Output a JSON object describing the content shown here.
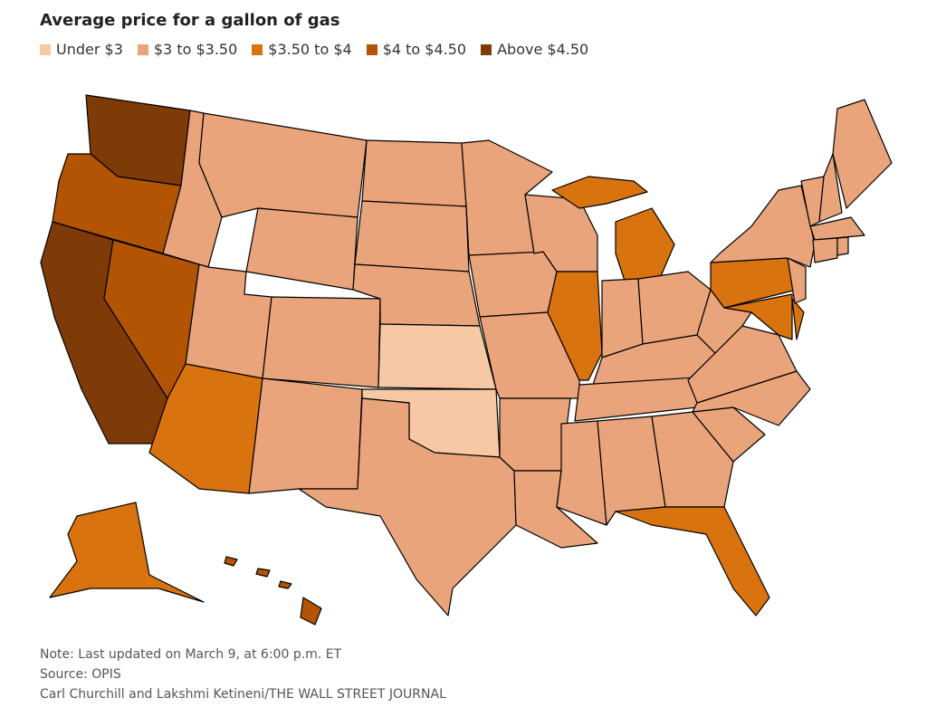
{
  "chart_data": {
    "type": "choropleth",
    "title": "Average price for a gallon of gas",
    "legend": [
      {
        "label": "Under $3",
        "color": "#f6c9a4"
      },
      {
        "label": "$3 to $3.50",
        "color": "#e9a47b"
      },
      {
        "label": "$3.50 to $4",
        "color": "#d9730f"
      },
      {
        "label": "$4 to $4.50",
        "color": "#b25403"
      },
      {
        "label": "Above $4.50",
        "color": "#7f3b07"
      }
    ],
    "regions": [
      4,
      3,
      4,
      3,
      1,
      1,
      1,
      1,
      2,
      1,
      1,
      1,
      1,
      1,
      0,
      0,
      1,
      1,
      1,
      1,
      1,
      1,
      1,
      2,
      2,
      1,
      1,
      1,
      1,
      1,
      1,
      1,
      2,
      1,
      1,
      1,
      1,
      2,
      2,
      2,
      1,
      1,
      1,
      1,
      1,
      1,
      1,
      1,
      2,
      3
    ],
    "notes": [
      "Note: Last updated on March 9, at 6:00 p.m. ET",
      "Source: OPIS",
      "Carl Churchill and Lakshmi Ketineni/THE WALL STREET JOURNAL"
    ]
  }
}
